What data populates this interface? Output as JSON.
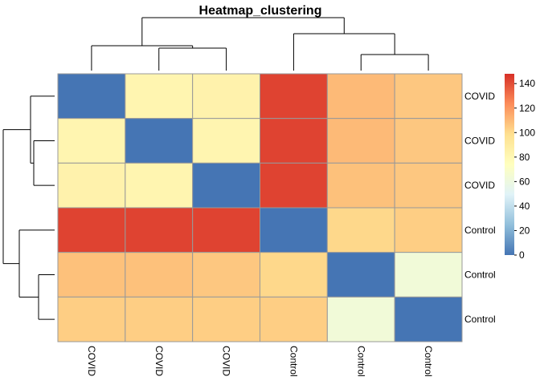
{
  "chart_data": {
    "type": "heatmap",
    "title": "Heatmap_clustering",
    "row_labels": [
      "COVID",
      "COVID",
      "COVID",
      "Control",
      "Control",
      "Control"
    ],
    "col_labels": [
      "COVID",
      "COVID",
      "COVID",
      "Control",
      "Control",
      "Control"
    ],
    "values": [
      [
        0,
        82,
        84,
        143,
        110,
        106
      ],
      [
        82,
        0,
        82,
        143,
        110,
        106
      ],
      [
        84,
        82,
        0,
        143,
        108,
        106
      ],
      [
        143,
        143,
        143,
        0,
        101,
        104
      ],
      [
        108,
        108,
        106,
        101,
        0,
        63
      ],
      [
        104,
        104,
        104,
        104,
        63,
        0
      ]
    ],
    "colorbar": {
      "min": 0,
      "max": 148,
      "ticks": [
        0,
        20,
        40,
        60,
        80,
        100,
        120,
        140
      ],
      "colors": [
        "#4575B4",
        "#91BFDB",
        "#E0F3F8",
        "#FFFFBF",
        "#FEE090",
        "#FC8D59",
        "#D73027"
      ]
    },
    "row_dendrogram": "shown-left",
    "col_dendrogram": "shown-top",
    "cell_border_color": "#999999"
  }
}
